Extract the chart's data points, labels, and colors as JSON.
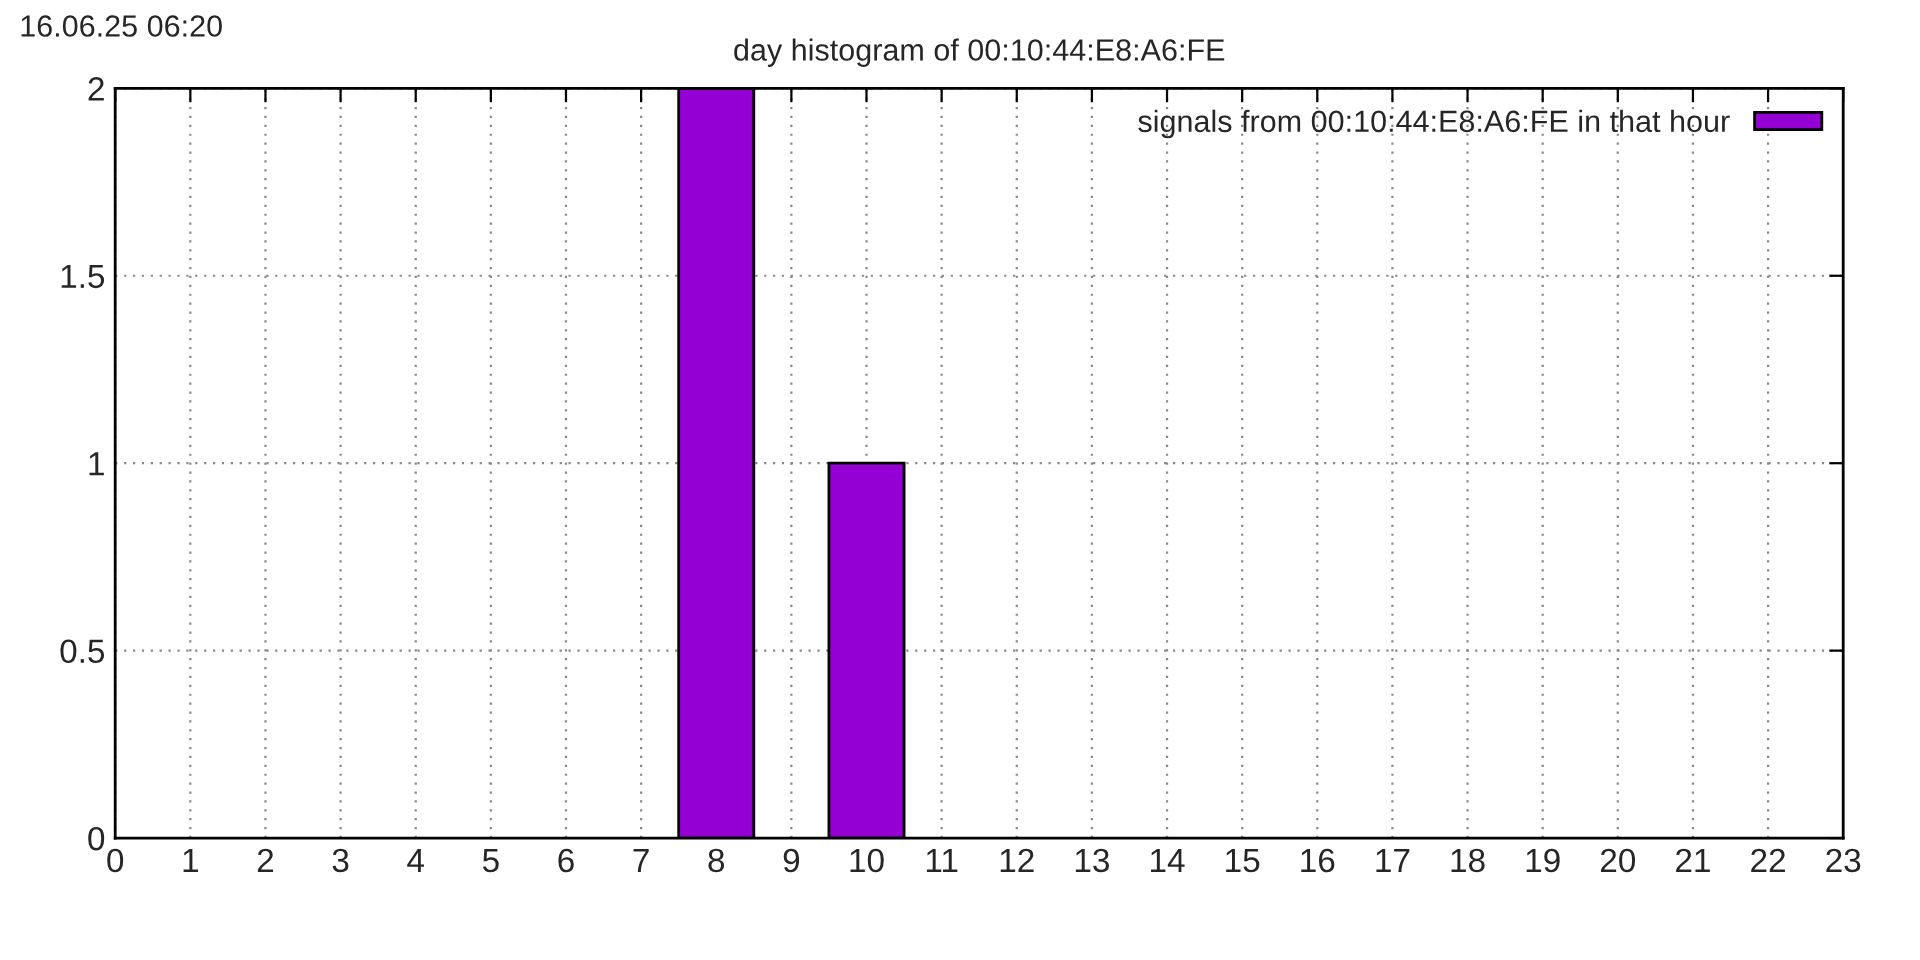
{
  "chart_data": {
    "type": "bar",
    "title": "day histogram of 00:10:44:E8:A6:FE",
    "annotations": [
      "16.06.25 06:20"
    ],
    "x": [
      8,
      10
    ],
    "series": [
      {
        "name": "signals from 00:10:44:E8:A6:FE in that hour",
        "color": "#9400d3",
        "values": [
          2,
          1
        ]
      }
    ],
    "xlim": [
      0,
      23
    ],
    "xticks": [
      0,
      1,
      2,
      3,
      4,
      5,
      6,
      7,
      8,
      9,
      10,
      11,
      12,
      13,
      14,
      15,
      16,
      17,
      18,
      19,
      20,
      21,
      22,
      23
    ],
    "ylim": [
      0,
      2
    ],
    "yticks": [
      0,
      0.5,
      1,
      1.5,
      2
    ],
    "grid": true,
    "legend": "top right"
  }
}
